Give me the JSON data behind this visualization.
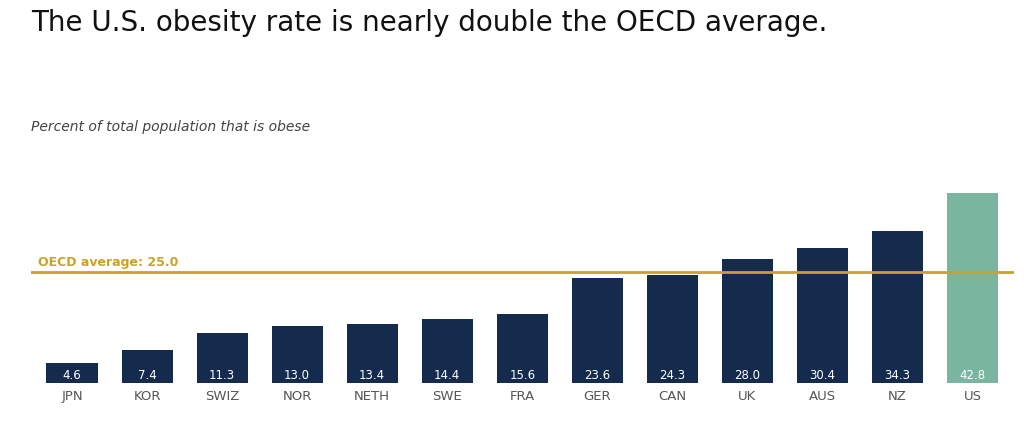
{
  "categories": [
    "JPN",
    "KOR",
    "SWIZ",
    "NOR",
    "NETH",
    "SWE",
    "FRA",
    "GER",
    "CAN",
    "UK",
    "AUS",
    "NZ",
    "US"
  ],
  "values": [
    4.6,
    7.4,
    11.3,
    13.0,
    13.4,
    14.4,
    15.6,
    23.6,
    24.3,
    28.0,
    30.4,
    34.3,
    42.8
  ],
  "bar_colors": [
    "#152b4e",
    "#152b4e",
    "#152b4e",
    "#152b4e",
    "#152b4e",
    "#152b4e",
    "#152b4e",
    "#152b4e",
    "#152b4e",
    "#152b4e",
    "#152b4e",
    "#152b4e",
    "#7ab5a0"
  ],
  "title": "The U.S. obesity rate is nearly double the OECD average.",
  "subtitle": "Percent of total population that is obese",
  "oecd_avg": 25.0,
  "oecd_label": "OECD average: 25.0",
  "oecd_line_color": "#c9a227",
  "background_color": "#ffffff",
  "title_fontsize": 20,
  "subtitle_fontsize": 10,
  "value_fontsize": 8.5,
  "label_fontsize": 9.5,
  "ylim": [
    0,
    50
  ],
  "title_color": "#111111",
  "subtitle_color": "#444444",
  "tick_label_color": "#555555",
  "bar_width": 0.68
}
